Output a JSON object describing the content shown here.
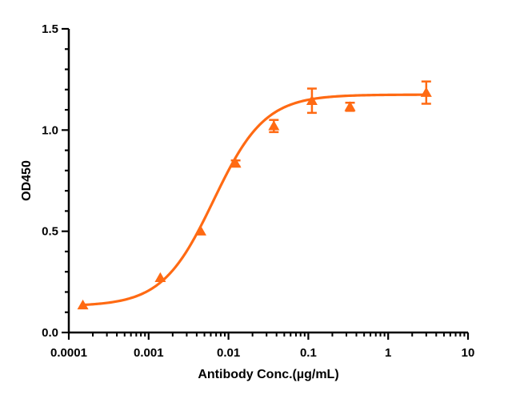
{
  "chart_data": {
    "type": "scatter",
    "title": "",
    "xlabel": "Antibody Conc.(µg/mL)",
    "ylabel": "OD450",
    "x_scale": "log",
    "xlim": [
      0.0001,
      10
    ],
    "ylim": [
      0.0,
      1.5
    ],
    "x_ticks": [
      "0.0001",
      "0.001",
      "0.01",
      "0.1",
      "1",
      "10"
    ],
    "y_ticks": [
      "0.0",
      "0.5",
      "1.0",
      "1.5"
    ],
    "grid": false,
    "legend": "none",
    "color": "#FF6A13",
    "marker": "triangle",
    "series": [
      {
        "x": [
          0.00015,
          0.0014,
          0.0045,
          0.0123,
          0.037,
          0.111,
          0.333,
          3.0
        ],
        "y": [
          0.135,
          0.27,
          0.5,
          0.835,
          1.02,
          1.145,
          1.115,
          1.185
        ],
        "error": [
          0.01,
          0.01,
          0.01,
          0.015,
          0.03,
          0.06,
          0.02,
          0.055
        ]
      }
    ],
    "fit_curve": {
      "type": "4PL",
      "bottom": 0.13,
      "top": 1.175,
      "ec50": 0.0065,
      "hill": 1.35
    }
  }
}
